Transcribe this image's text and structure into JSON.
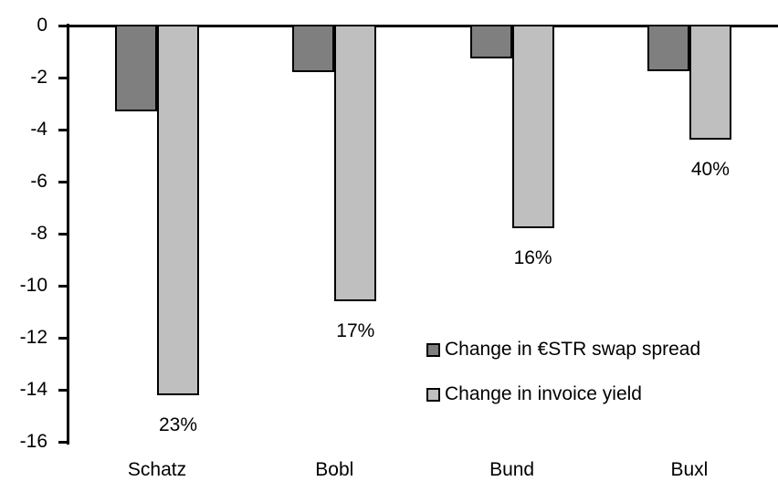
{
  "chart_data": {
    "type": "bar",
    "title": "",
    "xlabel": "",
    "ylabel": "",
    "categories": [
      "Schatz",
      "Bobl",
      "Bund",
      "Buxl"
    ],
    "series": [
      {
        "name": "Change in €STR swap spread",
        "color": "#7F7F7F",
        "values": [
          -3.3,
          -1.8,
          -1.25,
          -1.75
        ]
      },
      {
        "name": "Change in invoice yield",
        "color": "#BFBFBF",
        "values": [
          -14.2,
          -10.6,
          -7.8,
          -4.4
        ],
        "point_labels": [
          "23%",
          "17%",
          "16%",
          "40%"
        ]
      }
    ],
    "ylim": [
      -16,
      0
    ],
    "yticks": [
      0,
      -2,
      -4,
      -6,
      -8,
      -10,
      -12,
      -14,
      -16
    ],
    "grid": false,
    "legend_position": "inside-right",
    "bar_border_color": "#000000",
    "axis_color": "#000000",
    "text_color": "#000000",
    "background_color": "#FFFFFF"
  }
}
